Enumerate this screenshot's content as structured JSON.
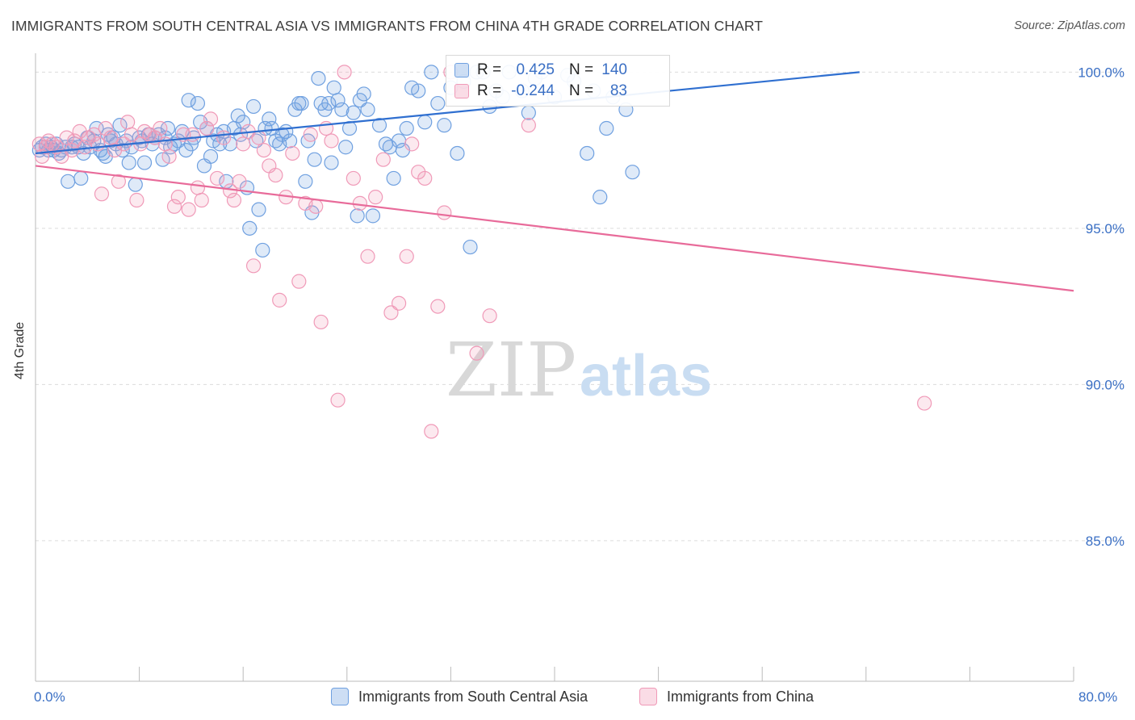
{
  "title": "IMMIGRANTS FROM SOUTH CENTRAL ASIA VS IMMIGRANTS FROM CHINA 4TH GRADE CORRELATION CHART",
  "source": "Source: ZipAtlas.com",
  "watermark": {
    "zip": "ZIP",
    "atlas": "atlas"
  },
  "legend": {
    "r_label": "R =",
    "n_label": "N =",
    "rows": [
      {
        "r": "0.425",
        "n": "140",
        "color": "#6fa0e0"
      },
      {
        "r": "-0.244",
        "n": "83",
        "color": "#f09ab8"
      }
    ]
  },
  "x_axis_labels": {
    "left": "0.0%",
    "right": "80.0%"
  },
  "bottom_legend": [
    {
      "label": "Immigrants from South Central Asia",
      "color": "#6fa0e0"
    },
    {
      "label": "Immigrants from China",
      "color": "#f09ab8"
    }
  ],
  "chart_data": {
    "type": "scatter",
    "xlabel": "",
    "ylabel": "4th Grade",
    "xlim": [
      0,
      80
    ],
    "ylim": [
      80.5,
      100.5
    ],
    "y_ticks": [
      85.0,
      90.0,
      95.0,
      100.0
    ],
    "y_tick_labels": [
      "85.0%",
      "90.0%",
      "95.0%",
      "100.0%"
    ],
    "x_tick_count": 11,
    "grid": "horizontal dashed",
    "series": [
      {
        "name": "Immigrants from South Central Asia",
        "color": "#6fa0e0",
        "trend": {
          "x": [
            0,
            63.5
          ],
          "y": [
            97.4,
            100.0
          ]
        },
        "points": [
          [
            0.3,
            97.5
          ],
          [
            0.5,
            97.6
          ],
          [
            0.8,
            97.7
          ],
          [
            1.0,
            97.5
          ],
          [
            1.2,
            97.6
          ],
          [
            1.4,
            97.5
          ],
          [
            1.6,
            97.7
          ],
          [
            1.8,
            97.4
          ],
          [
            2.0,
            97.5
          ],
          [
            2.3,
            97.6
          ],
          [
            2.5,
            96.5
          ],
          [
            2.8,
            97.6
          ],
          [
            3.0,
            97.7
          ],
          [
            3.3,
            97.6
          ],
          [
            3.5,
            96.6
          ],
          [
            3.7,
            97.4
          ],
          [
            4.0,
            97.9
          ],
          [
            4.2,
            97.6
          ],
          [
            4.5,
            97.8
          ],
          [
            4.7,
            98.2
          ],
          [
            5.0,
            97.5
          ],
          [
            5.2,
            97.4
          ],
          [
            5.4,
            97.3
          ],
          [
            5.6,
            98.0
          ],
          [
            5.8,
            97.8
          ],
          [
            6.0,
            97.9
          ],
          [
            6.2,
            97.7
          ],
          [
            6.5,
            98.3
          ],
          [
            6.7,
            97.5
          ],
          [
            7.0,
            97.8
          ],
          [
            7.2,
            97.1
          ],
          [
            7.4,
            97.6
          ],
          [
            7.7,
            96.4
          ],
          [
            8.0,
            97.9
          ],
          [
            8.2,
            97.8
          ],
          [
            8.4,
            97.1
          ],
          [
            8.7,
            98.0
          ],
          [
            9.0,
            97.7
          ],
          [
            9.2,
            97.9
          ],
          [
            9.5,
            98.0
          ],
          [
            9.8,
            97.2
          ],
          [
            10.0,
            97.9
          ],
          [
            10.2,
            98.2
          ],
          [
            10.4,
            97.6
          ],
          [
            10.7,
            97.7
          ],
          [
            11.0,
            97.8
          ],
          [
            11.3,
            98.1
          ],
          [
            11.6,
            97.5
          ],
          [
            11.8,
            99.1
          ],
          [
            12.0,
            97.7
          ],
          [
            12.2,
            97.9
          ],
          [
            12.5,
            99.0
          ],
          [
            12.7,
            98.4
          ],
          [
            13.0,
            97.0
          ],
          [
            13.2,
            98.2
          ],
          [
            13.5,
            97.3
          ],
          [
            13.7,
            97.8
          ],
          [
            14.0,
            98.0
          ],
          [
            14.2,
            97.7
          ],
          [
            14.5,
            98.1
          ],
          [
            14.7,
            96.5
          ],
          [
            15.0,
            97.7
          ],
          [
            15.3,
            98.2
          ],
          [
            15.6,
            98.6
          ],
          [
            15.8,
            98.0
          ],
          [
            16.0,
            98.4
          ],
          [
            16.3,
            96.3
          ],
          [
            16.5,
            95.0
          ],
          [
            16.8,
            98.9
          ],
          [
            17.0,
            97.8
          ],
          [
            17.2,
            95.6
          ],
          [
            17.5,
            94.3
          ],
          [
            17.7,
            98.2
          ],
          [
            18.0,
            98.5
          ],
          [
            18.2,
            98.2
          ],
          [
            18.5,
            97.8
          ],
          [
            18.8,
            97.7
          ],
          [
            19.0,
            98.0
          ],
          [
            19.3,
            98.1
          ],
          [
            19.6,
            97.8
          ],
          [
            20.0,
            98.8
          ],
          [
            20.3,
            99.0
          ],
          [
            20.5,
            99.0
          ],
          [
            20.8,
            96.5
          ],
          [
            21.0,
            97.8
          ],
          [
            21.3,
            95.5
          ],
          [
            21.5,
            97.2
          ],
          [
            21.8,
            99.8
          ],
          [
            22.0,
            99.0
          ],
          [
            22.3,
            98.8
          ],
          [
            22.6,
            99.0
          ],
          [
            22.8,
            97.1
          ],
          [
            23.0,
            99.5
          ],
          [
            23.3,
            99.1
          ],
          [
            23.6,
            98.8
          ],
          [
            23.9,
            97.6
          ],
          [
            24.2,
            98.2
          ],
          [
            24.5,
            98.7
          ],
          [
            24.8,
            95.4
          ],
          [
            25.0,
            99.1
          ],
          [
            25.3,
            99.3
          ],
          [
            25.6,
            98.8
          ],
          [
            26.0,
            95.4
          ],
          [
            26.5,
            98.3
          ],
          [
            27.0,
            97.7
          ],
          [
            27.3,
            97.6
          ],
          [
            27.6,
            96.6
          ],
          [
            28.0,
            97.8
          ],
          [
            28.3,
            97.5
          ],
          [
            28.6,
            98.2
          ],
          [
            29.0,
            99.5
          ],
          [
            29.5,
            99.4
          ],
          [
            30.0,
            98.4
          ],
          [
            30.5,
            100.0
          ],
          [
            31.0,
            99.0
          ],
          [
            31.5,
            98.3
          ],
          [
            32.0,
            99.5
          ],
          [
            32.5,
            97.4
          ],
          [
            33.0,
            99.7
          ],
          [
            33.5,
            94.4
          ],
          [
            34.0,
            100.0
          ],
          [
            34.5,
            100.0
          ],
          [
            35.0,
            98.9
          ],
          [
            35.5,
            99.4
          ],
          [
            36.0,
            99.2
          ],
          [
            36.5,
            100.0
          ],
          [
            37.5,
            99.4
          ],
          [
            38.0,
            98.7
          ],
          [
            38.5,
            99.8
          ],
          [
            39.0,
            100.0
          ],
          [
            40.0,
            99.2
          ],
          [
            41.0,
            99.9
          ],
          [
            41.5,
            99.7
          ],
          [
            42.5,
            97.4
          ],
          [
            43.0,
            99.4
          ],
          [
            43.5,
            96.0
          ],
          [
            44.0,
            98.2
          ],
          [
            44.5,
            99.2
          ],
          [
            45.5,
            98.8
          ],
          [
            46.0,
            96.8
          ]
        ]
      },
      {
        "name": "Immigrants from China",
        "color": "#f09ab8",
        "trend": {
          "x": [
            0,
            80
          ],
          "y": [
            97.0,
            93.0
          ]
        },
        "points": [
          [
            0.3,
            97.7
          ],
          [
            0.5,
            97.3
          ],
          [
            0.8,
            97.6
          ],
          [
            1.0,
            97.8
          ],
          [
            1.3,
            97.7
          ],
          [
            1.6,
            97.6
          ],
          [
            2.0,
            97.3
          ],
          [
            2.4,
            97.9
          ],
          [
            2.8,
            97.5
          ],
          [
            3.0,
            97.8
          ],
          [
            3.4,
            98.1
          ],
          [
            3.8,
            97.6
          ],
          [
            4.1,
            97.9
          ],
          [
            4.5,
            98.0
          ],
          [
            4.8,
            97.7
          ],
          [
            5.1,
            96.1
          ],
          [
            5.4,
            98.2
          ],
          [
            5.8,
            97.9
          ],
          [
            6.1,
            97.5
          ],
          [
            6.4,
            96.5
          ],
          [
            6.8,
            97.7
          ],
          [
            7.1,
            98.4
          ],
          [
            7.4,
            98.0
          ],
          [
            7.8,
            95.9
          ],
          [
            8.1,
            97.7
          ],
          [
            8.4,
            98.1
          ],
          [
            8.8,
            98.0
          ],
          [
            9.2,
            97.9
          ],
          [
            9.6,
            98.2
          ],
          [
            10.0,
            97.7
          ],
          [
            10.3,
            97.3
          ],
          [
            10.7,
            95.7
          ],
          [
            11.0,
            96.0
          ],
          [
            11.4,
            98.0
          ],
          [
            11.8,
            95.6
          ],
          [
            12.1,
            98.0
          ],
          [
            12.5,
            96.3
          ],
          [
            12.8,
            95.9
          ],
          [
            13.2,
            98.2
          ],
          [
            13.5,
            98.5
          ],
          [
            14.0,
            96.6
          ],
          [
            14.5,
            97.9
          ],
          [
            15.0,
            96.2
          ],
          [
            15.3,
            95.9
          ],
          [
            15.7,
            96.5
          ],
          [
            16.0,
            97.7
          ],
          [
            16.4,
            98.1
          ],
          [
            16.8,
            93.8
          ],
          [
            17.2,
            97.9
          ],
          [
            17.6,
            97.5
          ],
          [
            18.0,
            97.0
          ],
          [
            18.5,
            96.7
          ],
          [
            18.8,
            92.7
          ],
          [
            19.3,
            96.0
          ],
          [
            19.8,
            97.4
          ],
          [
            20.3,
            93.3
          ],
          [
            20.8,
            95.8
          ],
          [
            21.2,
            98.0
          ],
          [
            21.6,
            95.7
          ],
          [
            22.0,
            92.0
          ],
          [
            22.4,
            98.2
          ],
          [
            22.8,
            97.8
          ],
          [
            23.3,
            89.5
          ],
          [
            23.8,
            100.0
          ],
          [
            24.5,
            96.6
          ],
          [
            25.0,
            95.8
          ],
          [
            25.6,
            94.1
          ],
          [
            26.2,
            96.0
          ],
          [
            26.8,
            97.2
          ],
          [
            27.4,
            92.3
          ],
          [
            28.0,
            92.6
          ],
          [
            28.6,
            94.1
          ],
          [
            29.0,
            97.7
          ],
          [
            29.5,
            96.8
          ],
          [
            30.0,
            96.6
          ],
          [
            30.5,
            88.5
          ],
          [
            31.0,
            92.5
          ],
          [
            31.5,
            95.5
          ],
          [
            32.0,
            100.0
          ],
          [
            34.0,
            91.0
          ],
          [
            35.0,
            92.2
          ],
          [
            38.0,
            98.3
          ],
          [
            68.5,
            89.4
          ]
        ]
      }
    ]
  }
}
